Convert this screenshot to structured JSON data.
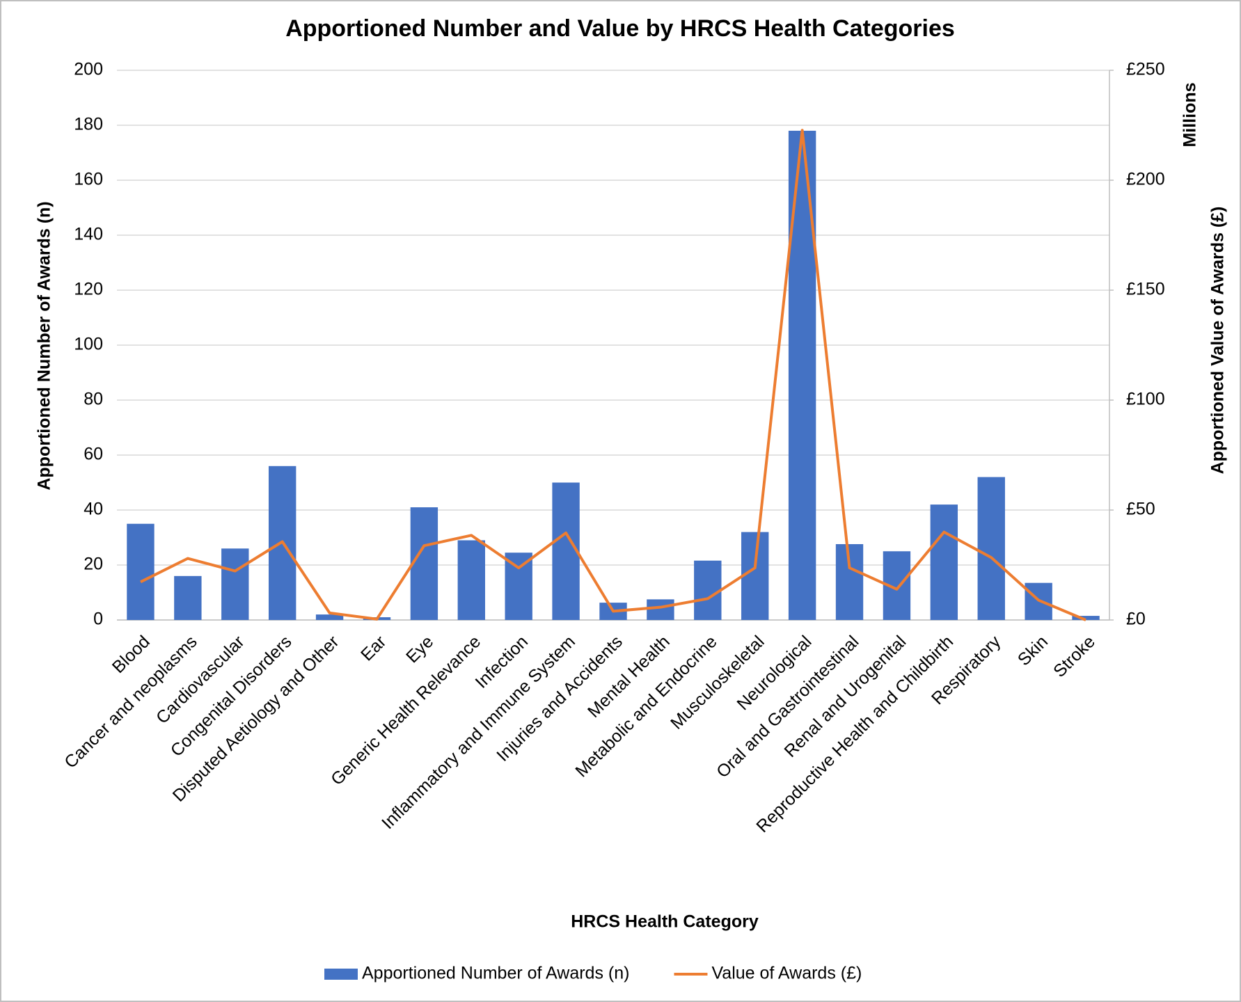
{
  "chart_data": {
    "type": "bar",
    "title": "Apportioned Number and Value by HRCS Health Categories",
    "x_label": "HRCS Health Category",
    "y_label": "Apportioned Number of Awards (n)",
    "y2_label": "Apportioned Value of Awards (£)",
    "y2_unit": "Millions",
    "categories": [
      "Blood",
      "Cancer and neoplasms",
      "Cardiovascular",
      "Congenital Disorders",
      "Disputed Aetiology and Other",
      "Ear",
      "Eye",
      "Generic Health Relevance",
      "Infection",
      "Inflammatory and Immune System",
      "Injuries and Accidents",
      "Mental Health",
      "Metabolic and Endocrine",
      "Musculoskeletal",
      "Neurological",
      "Oral and Gastrointestinal",
      "Renal and Urogenital",
      "Reproductive Health and Childbirth",
      "Respiratory",
      "Skin",
      "Stroke"
    ],
    "series": [
      {
        "name": "Apportioned Number of Awards (n)",
        "type": "bar",
        "color": "#4472c4",
        "values": [
          35,
          16,
          26,
          56,
          2,
          1,
          41,
          29,
          24.5,
          50,
          6.3,
          7.5,
          21.6,
          32,
          178,
          27.6,
          25,
          42,
          52,
          13.5,
          1.5
        ]
      },
      {
        "name": "Value of Awards (£)",
        "type": "line",
        "axis": "y2",
        "color": "#ed7d31",
        "values": [
          17.3,
          28,
          22.3,
          35.6,
          3.2,
          0.4,
          33.8,
          38.5,
          23.7,
          39.6,
          4,
          5.8,
          9.7,
          23.7,
          222.7,
          23.7,
          14,
          40,
          28.4,
          9,
          0
        ]
      }
    ],
    "ylim": [
      0,
      200
    ],
    "yticks": [
      0,
      20,
      40,
      60,
      80,
      100,
      120,
      140,
      160,
      180,
      200
    ],
    "y2lim": [
      0,
      250
    ],
    "y2ticks": [
      {
        "value": 0,
        "label": "£0"
      },
      {
        "value": 50,
        "label": "£50"
      },
      {
        "value": 100,
        "label": "£100"
      },
      {
        "value": 150,
        "label": "£150"
      },
      {
        "value": 200,
        "label": "£200"
      },
      {
        "value": 250,
        "label": "£250"
      }
    ],
    "grid": true,
    "legend": "bottom"
  }
}
